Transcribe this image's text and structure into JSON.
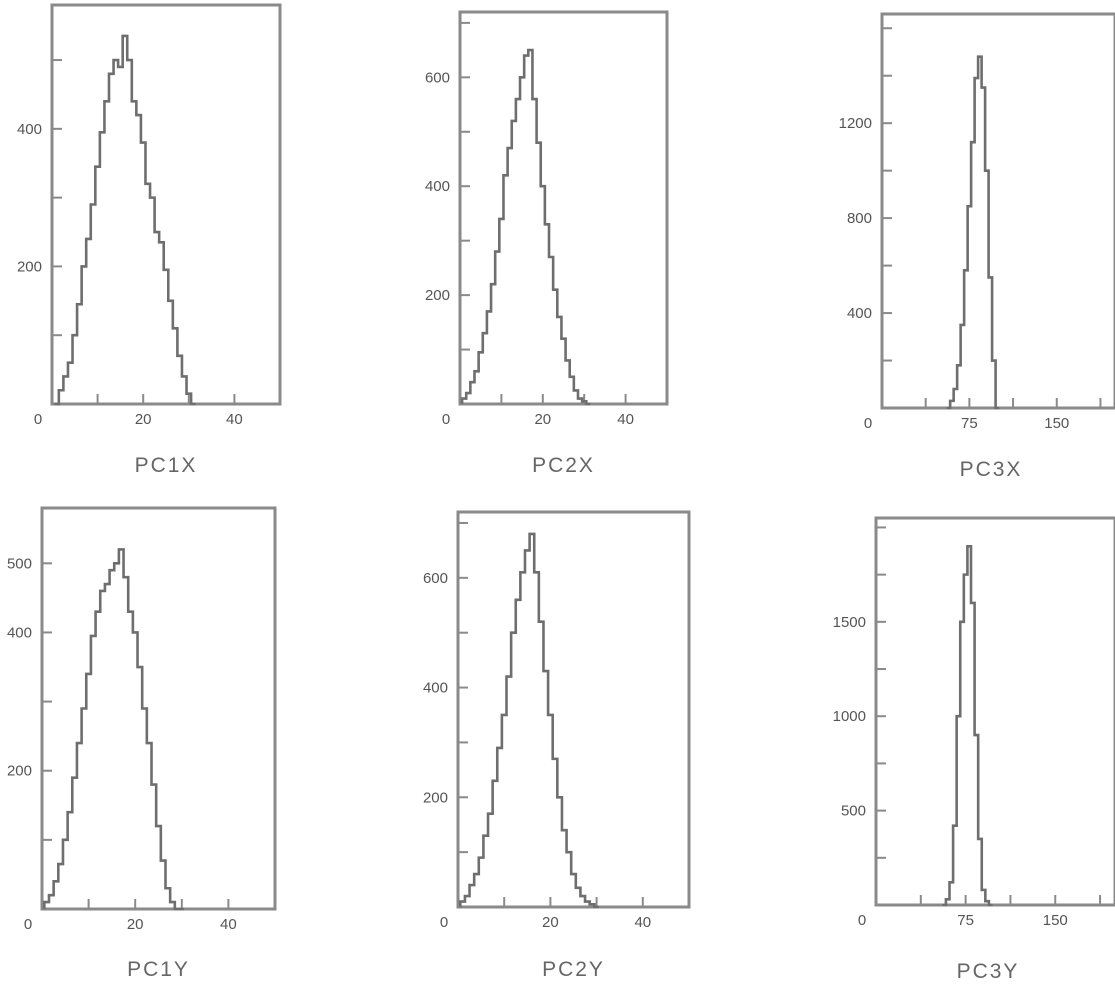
{
  "chart_data": [
    {
      "type": "bar",
      "title": "PC1X",
      "xlim": [
        0,
        50
      ],
      "ylim": [
        0,
        580
      ],
      "xticks": [
        0,
        20,
        40
      ],
      "yticks": [
        200,
        400
      ],
      "yminor_step": 100,
      "bins": [
        1,
        2,
        3,
        4,
        5,
        6,
        7,
        8,
        9,
        10,
        11,
        12,
        13,
        14,
        15,
        16,
        17,
        18,
        19,
        20,
        21,
        22,
        23,
        24,
        25,
        26,
        27,
        28,
        29,
        30,
        31
      ],
      "values": [
        0,
        20,
        40,
        60,
        100,
        145,
        200,
        240,
        290,
        345,
        395,
        440,
        480,
        500,
        490,
        535,
        500,
        440,
        420,
        380,
        320,
        300,
        250,
        235,
        195,
        150,
        110,
        70,
        40,
        15,
        0
      ]
    },
    {
      "type": "bar",
      "title": "PC2X",
      "xlim": [
        0,
        50
      ],
      "ylim": [
        0,
        720
      ],
      "xticks": [
        0,
        20,
        40
      ],
      "yticks": [
        200,
        400,
        600
      ],
      "yminor_step": 100,
      "bins": [
        1,
        2,
        3,
        4,
        5,
        6,
        7,
        8,
        9,
        10,
        11,
        12,
        13,
        14,
        15,
        16,
        17,
        18,
        19,
        20,
        21,
        22,
        23,
        24,
        25,
        26,
        27,
        28,
        29,
        30,
        31
      ],
      "values": [
        10,
        20,
        40,
        60,
        95,
        130,
        170,
        220,
        280,
        340,
        420,
        470,
        520,
        560,
        600,
        640,
        650,
        560,
        480,
        400,
        330,
        270,
        210,
        160,
        120,
        80,
        50,
        25,
        10,
        5,
        0
      ]
    },
    {
      "type": "bar",
      "title": "PC3X",
      "xlim": [
        0,
        200
      ],
      "ylim": [
        0,
        1660
      ],
      "xticks": [
        0,
        75,
        150
      ],
      "yticks": [
        400,
        800,
        1200
      ],
      "yminor_step": 200,
      "bins": [
        57,
        60,
        63,
        66,
        69,
        72,
        75,
        78,
        81,
        84,
        87,
        90,
        93,
        96,
        99
      ],
      "values": [
        0,
        30,
        80,
        180,
        350,
        580,
        850,
        1120,
        1390,
        1480,
        1350,
        1000,
        550,
        200,
        0
      ]
    },
    {
      "type": "bar",
      "title": "PC1Y",
      "xlim": [
        0,
        50
      ],
      "ylim": [
        0,
        580
      ],
      "xticks": [
        0,
        20,
        40
      ],
      "yticks": [
        200,
        400,
        500
      ],
      "yminor_step": 100,
      "bins": [
        1,
        2,
        3,
        4,
        5,
        6,
        7,
        8,
        9,
        10,
        11,
        12,
        13,
        14,
        15,
        16,
        17,
        18,
        19,
        20,
        21,
        22,
        23,
        24,
        25,
        26,
        27,
        28,
        29,
        30
      ],
      "values": [
        10,
        20,
        40,
        65,
        100,
        140,
        190,
        240,
        290,
        340,
        395,
        430,
        460,
        470,
        490,
        500,
        520,
        480,
        430,
        400,
        350,
        290,
        240,
        180,
        120,
        70,
        30,
        10,
        0,
        0
      ]
    },
    {
      "type": "bar",
      "title": "PC2Y",
      "xlim": [
        0,
        50
      ],
      "ylim": [
        0,
        720
      ],
      "xticks": [
        0,
        20,
        40
      ],
      "yticks": [
        200,
        400,
        600
      ],
      "yminor_step": 100,
      "bins": [
        1,
        2,
        3,
        4,
        5,
        6,
        7,
        8,
        9,
        10,
        11,
        12,
        13,
        14,
        15,
        16,
        17,
        18,
        19,
        20,
        21,
        22,
        23,
        24,
        25,
        26,
        27,
        28,
        29,
        30
      ],
      "values": [
        10,
        20,
        40,
        60,
        90,
        130,
        170,
        230,
        290,
        350,
        420,
        500,
        560,
        610,
        650,
        680,
        610,
        520,
        430,
        350,
        270,
        200,
        140,
        100,
        60,
        35,
        20,
        10,
        5,
        0
      ]
    },
    {
      "type": "bar",
      "title": "PC3Y",
      "xlim": [
        0,
        200
      ],
      "ylim": [
        0,
        2050
      ],
      "xticks": [
        0,
        75,
        150
      ],
      "yticks": [
        500,
        1000,
        1500
      ],
      "yminor_step": 250,
      "bins": [
        57,
        60,
        63,
        66,
        69,
        72,
        75,
        78,
        81,
        84,
        87,
        90,
        93,
        96
      ],
      "values": [
        0,
        30,
        120,
        420,
        1000,
        1500,
        1750,
        1900,
        1600,
        900,
        350,
        80,
        20,
        0
      ]
    }
  ]
}
